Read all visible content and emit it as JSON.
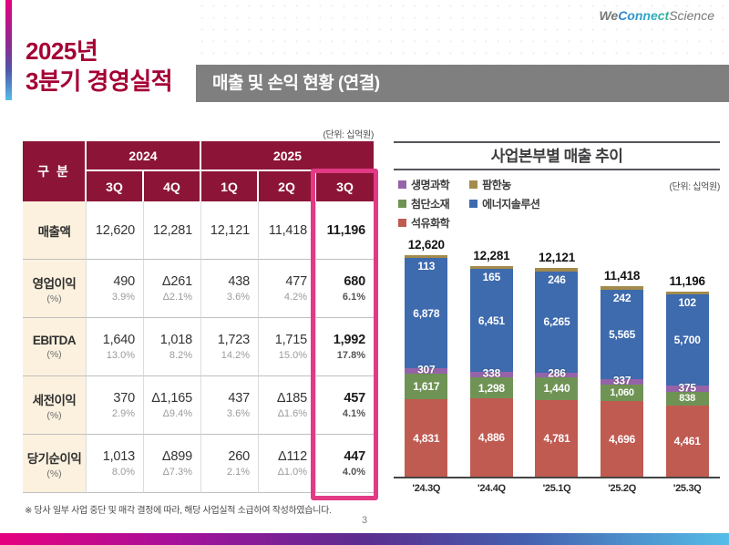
{
  "slide": {
    "title_line1": "2025년",
    "title_line2": "3분기 경영실적",
    "section_header": "매출 및 손익 현황 (연결)",
    "logo": {
      "we": "We",
      "connect": "Connect",
      "science": "Science"
    },
    "unit_label_table": "(단위: 십억원)",
    "unit_label_chart": "(단위: 십억원)",
    "footnote": "※ 당사 일부 사업 중단 및 매각 결정에 따라, 해당 사업실적 소급하여 작성하였습니다.",
    "page_number": "3"
  },
  "table": {
    "corner_label": "구 분",
    "year_groups": [
      {
        "label": "2024",
        "span": 2
      },
      {
        "label": "2025",
        "span": 3
      }
    ],
    "quarter_headers": [
      "3Q",
      "4Q",
      "1Q",
      "2Q",
      "3Q"
    ],
    "highlight_column_index": 4,
    "rows": [
      {
        "label": "매출액",
        "sub": "",
        "values": [
          "12,620",
          "12,281",
          "12,121",
          "11,418",
          "11,196"
        ],
        "subvalues": [
          "",
          "",
          "",
          "",
          ""
        ]
      },
      {
        "label": "영업이익",
        "sub": "(%)",
        "values": [
          "490",
          "Δ261",
          "438",
          "477",
          "680"
        ],
        "subvalues": [
          "3.9%",
          "Δ2.1%",
          "3.6%",
          "4.2%",
          "6.1%"
        ]
      },
      {
        "label": "EBITDA",
        "sub": "(%)",
        "values": [
          "1,640",
          "1,018",
          "1,723",
          "1,715",
          "1,992"
        ],
        "subvalues": [
          "13.0%",
          "8.2%",
          "14.2%",
          "15.0%",
          "17.8%"
        ]
      },
      {
        "label": "세전이익",
        "sub": "(%)",
        "values": [
          "370",
          "Δ1,165",
          "437",
          "Δ185",
          "457"
        ],
        "subvalues": [
          "2.9%",
          "Δ9.4%",
          "3.6%",
          "Δ1.6%",
          "4.1%"
        ]
      },
      {
        "label": "당기순이익",
        "sub": "(%)",
        "values": [
          "1,013",
          "Δ899",
          "260",
          "Δ112",
          "447"
        ],
        "subvalues": [
          "8.0%",
          "Δ7.3%",
          "2.1%",
          "Δ1.0%",
          "4.0%"
        ]
      }
    ]
  },
  "chart_data": {
    "type": "bar",
    "stacked": true,
    "title": "사업본부별 매출 추이",
    "unit": "(단위: 십억원)",
    "categories": [
      "'24.3Q",
      "'24.4Q",
      "'25.1Q",
      "'25.2Q",
      "'25.3Q"
    ],
    "totals": [
      12620,
      12281,
      12121,
      11418,
      11196
    ],
    "series": [
      {
        "name": "석유화학",
        "color": "#C05B52",
        "values": [
          4831,
          4886,
          4781,
          4696,
          4461
        ]
      },
      {
        "name": "첨단소재",
        "color": "#6F9355",
        "values": [
          1617,
          1298,
          1440,
          1060,
          838
        ]
      },
      {
        "name": "생명과학",
        "color": "#9563A8",
        "values": [
          307,
          338,
          286,
          337,
          375
        ]
      },
      {
        "name": "에너지솔루션",
        "color": "#3E6AAE",
        "values": [
          6878,
          6451,
          6265,
          5565,
          5700
        ]
      },
      {
        "name": "팜한농",
        "color": "#A38B4D",
        "values": [
          113,
          165,
          246,
          242,
          102
        ]
      }
    ],
    "legend_columns": [
      [
        "생명과학",
        "첨단소재",
        "석유화학"
      ],
      [
        "팜한농",
        "에너지솔루션"
      ]
    ],
    "legend_position": "top-left",
    "ylabel": "",
    "xlabel": "",
    "grid": false
  },
  "colors": {
    "title_red": "#A50034",
    "table_header": "#8C1537",
    "label_cream": "#FBF1DE",
    "highlight_pink": "#E23A85",
    "section_band_gray": "#7F7F7F"
  }
}
